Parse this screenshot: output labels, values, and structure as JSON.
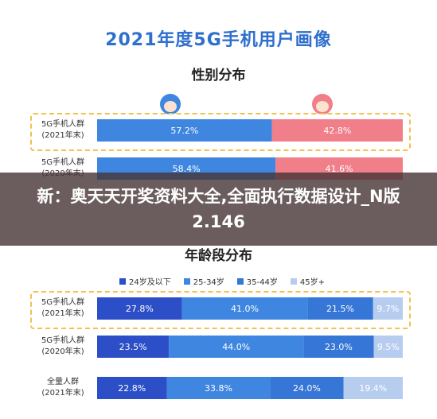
{
  "title": "2021年度5G手机用户画像",
  "overlay_text": "新：奥天天开奖资料大全,全面执行数据设计_N版2.146",
  "colors": {
    "male": "#3f86e0",
    "female": "#f07f8a",
    "age_24_below": "#2c4fc8",
    "age_25_34": "#3f86e0",
    "age_35_44": "#3576d6",
    "age_45_plus": "#b7cdef"
  },
  "chart_data": [
    {
      "type": "bar",
      "orientation": "horizontal",
      "stacked": true,
      "normalized": true,
      "title": "性别分布",
      "categories": [
        [
          "5G手机人群",
          "(2021年末)"
        ],
        [
          "5G手机人群",
          "(2020年末)"
        ]
      ],
      "series": [
        {
          "icon": "male-icon",
          "values": [
            57.2,
            58.4
          ],
          "labels": [
            "57.2%",
            "58.4%"
          ]
        },
        {
          "icon": "female-icon",
          "values": [
            42.8,
            41.6
          ],
          "labels": [
            "42.8%",
            "41.6%"
          ]
        }
      ],
      "highlight_row": 0
    },
    {
      "type": "bar",
      "orientation": "horizontal",
      "stacked": true,
      "normalized": true,
      "title": "年龄段分布",
      "legend_position": "top",
      "categories": [
        [
          "5G手机人群",
          "(2021年末)"
        ],
        [
          "5G手机人群",
          "(2020年末)"
        ],
        [
          "全量人群",
          "(2021年末)"
        ]
      ],
      "series": [
        {
          "name": "24岁及以下",
          "values": [
            27.8,
            23.5,
            22.8
          ],
          "labels": [
            "27.8%",
            "23.5%",
            "22.8%"
          ]
        },
        {
          "name": "25-34岁",
          "values": [
            41.0,
            44.0,
            33.8
          ],
          "labels": [
            "41.0%",
            "44.0%",
            "33.8%"
          ]
        },
        {
          "name": "35-44岁",
          "values": [
            21.5,
            23.0,
            24.0
          ],
          "labels": [
            "21.5%",
            "23.0%",
            "24.0%"
          ]
        },
        {
          "name": "45岁+",
          "values": [
            9.7,
            9.5,
            19.4
          ],
          "labels": [
            "9.7%",
            "9.5%",
            "19.4%"
          ]
        }
      ],
      "highlight_row": 0
    }
  ]
}
